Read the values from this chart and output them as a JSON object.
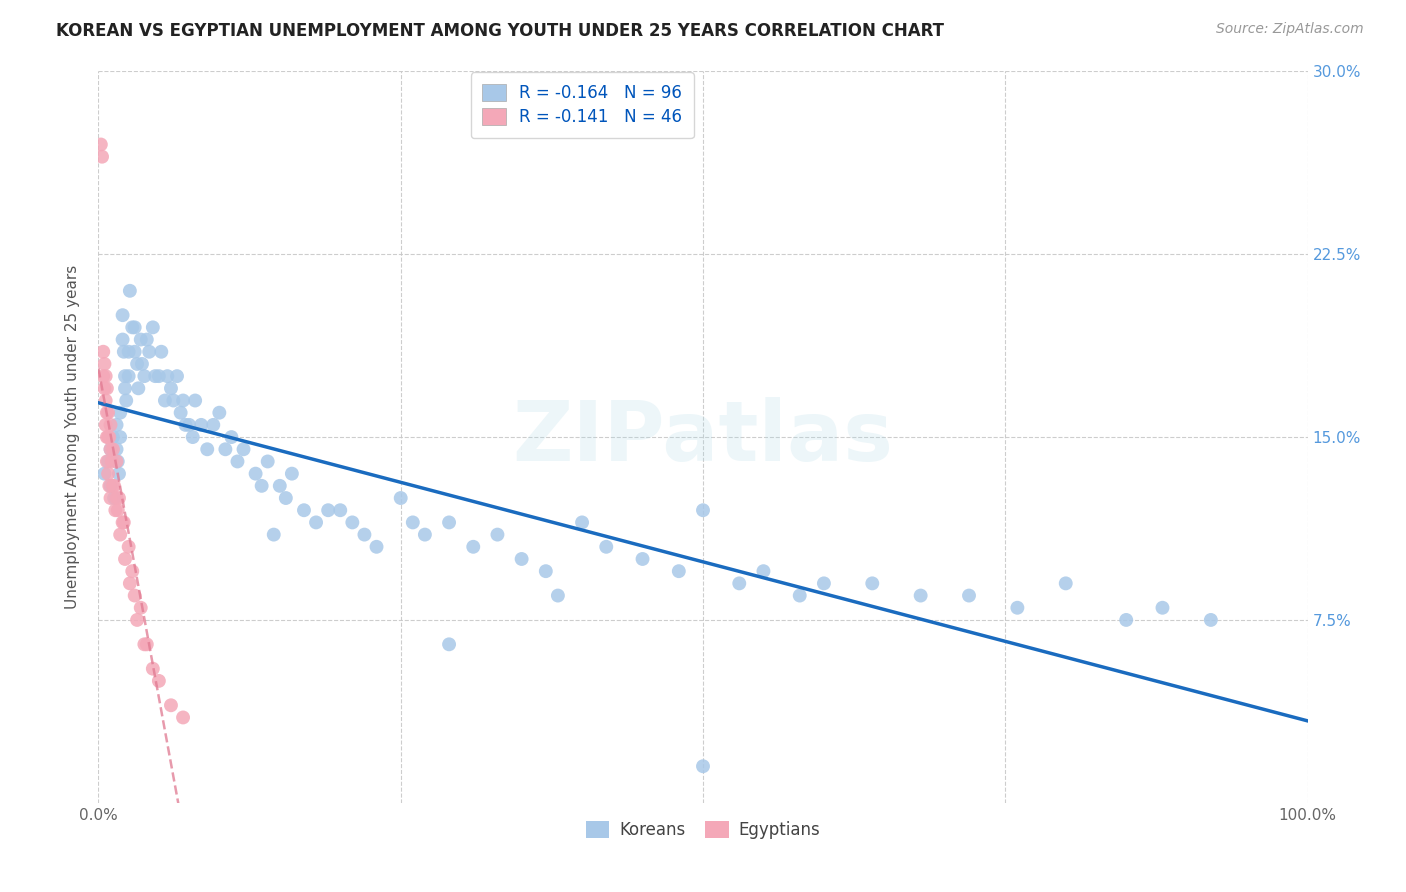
{
  "title": "KOREAN VS EGYPTIAN UNEMPLOYMENT AMONG YOUTH UNDER 25 YEARS CORRELATION CHART",
  "source": "Source: ZipAtlas.com",
  "ylabel": "Unemployment Among Youth under 25 years",
  "xlim": [
    0,
    1.0
  ],
  "ylim": [
    0,
    0.3
  ],
  "xtick_positions": [
    0.0,
    0.25,
    0.5,
    0.75,
    1.0
  ],
  "xtick_labels": [
    "0.0%",
    "",
    "",
    "",
    "100.0%"
  ],
  "ytick_values": [
    0.075,
    0.15,
    0.225,
    0.3
  ],
  "ytick_labels": [
    "7.5%",
    "15.0%",
    "22.5%",
    "30.0%"
  ],
  "korean_R": "-0.164",
  "korean_N": "96",
  "egyptian_R": "-0.141",
  "egyptian_N": "46",
  "korean_color": "#a8c8e8",
  "egyptian_color": "#f4a8b8",
  "korean_line_color": "#1a6bbf",
  "egyptian_line_color": "#e07890",
  "watermark": "ZIPatlas",
  "background_color": "#ffffff",
  "grid_color": "#c8c8c8",
  "korean_scatter_x": [
    0.005,
    0.008,
    0.01,
    0.01,
    0.012,
    0.013,
    0.015,
    0.015,
    0.016,
    0.017,
    0.018,
    0.018,
    0.02,
    0.02,
    0.021,
    0.022,
    0.022,
    0.023,
    0.025,
    0.025,
    0.026,
    0.028,
    0.03,
    0.03,
    0.032,
    0.033,
    0.035,
    0.036,
    0.038,
    0.04,
    0.042,
    0.045,
    0.047,
    0.05,
    0.052,
    0.055,
    0.057,
    0.06,
    0.062,
    0.065,
    0.068,
    0.07,
    0.072,
    0.075,
    0.078,
    0.08,
    0.085,
    0.09,
    0.095,
    0.1,
    0.105,
    0.11,
    0.115,
    0.12,
    0.13,
    0.135,
    0.14,
    0.15,
    0.155,
    0.16,
    0.17,
    0.18,
    0.19,
    0.2,
    0.21,
    0.22,
    0.23,
    0.25,
    0.26,
    0.27,
    0.29,
    0.31,
    0.33,
    0.35,
    0.37,
    0.4,
    0.42,
    0.45,
    0.48,
    0.5,
    0.53,
    0.55,
    0.58,
    0.6,
    0.64,
    0.68,
    0.72,
    0.76,
    0.8,
    0.85,
    0.88,
    0.92,
    0.5,
    0.38,
    0.29,
    0.145
  ],
  "korean_scatter_y": [
    0.135,
    0.14,
    0.145,
    0.13,
    0.15,
    0.125,
    0.155,
    0.145,
    0.14,
    0.135,
    0.16,
    0.15,
    0.2,
    0.19,
    0.185,
    0.175,
    0.17,
    0.165,
    0.185,
    0.175,
    0.21,
    0.195,
    0.195,
    0.185,
    0.18,
    0.17,
    0.19,
    0.18,
    0.175,
    0.19,
    0.185,
    0.195,
    0.175,
    0.175,
    0.185,
    0.165,
    0.175,
    0.17,
    0.165,
    0.175,
    0.16,
    0.165,
    0.155,
    0.155,
    0.15,
    0.165,
    0.155,
    0.145,
    0.155,
    0.16,
    0.145,
    0.15,
    0.14,
    0.145,
    0.135,
    0.13,
    0.14,
    0.13,
    0.125,
    0.135,
    0.12,
    0.115,
    0.12,
    0.12,
    0.115,
    0.11,
    0.105,
    0.125,
    0.115,
    0.11,
    0.115,
    0.105,
    0.11,
    0.1,
    0.095,
    0.115,
    0.105,
    0.1,
    0.095,
    0.12,
    0.09,
    0.095,
    0.085,
    0.09,
    0.09,
    0.085,
    0.085,
    0.08,
    0.09,
    0.075,
    0.08,
    0.075,
    0.015,
    0.085,
    0.065,
    0.11
  ],
  "egyptian_scatter_x": [
    0.002,
    0.003,
    0.004,
    0.004,
    0.005,
    0.005,
    0.006,
    0.006,
    0.006,
    0.007,
    0.007,
    0.007,
    0.007,
    0.008,
    0.008,
    0.008,
    0.009,
    0.009,
    0.01,
    0.01,
    0.01,
    0.011,
    0.012,
    0.012,
    0.013,
    0.014,
    0.015,
    0.015,
    0.016,
    0.017,
    0.018,
    0.02,
    0.021,
    0.022,
    0.025,
    0.026,
    0.028,
    0.03,
    0.032,
    0.035,
    0.038,
    0.04,
    0.045,
    0.05,
    0.06,
    0.07
  ],
  "egyptian_scatter_y": [
    0.27,
    0.265,
    0.185,
    0.175,
    0.18,
    0.17,
    0.175,
    0.165,
    0.155,
    0.17,
    0.16,
    0.15,
    0.14,
    0.16,
    0.15,
    0.135,
    0.15,
    0.13,
    0.155,
    0.145,
    0.125,
    0.14,
    0.145,
    0.13,
    0.13,
    0.12,
    0.14,
    0.125,
    0.12,
    0.125,
    0.11,
    0.115,
    0.115,
    0.1,
    0.105,
    0.09,
    0.095,
    0.085,
    0.075,
    0.08,
    0.065,
    0.065,
    0.055,
    0.05,
    0.04,
    0.035
  ]
}
